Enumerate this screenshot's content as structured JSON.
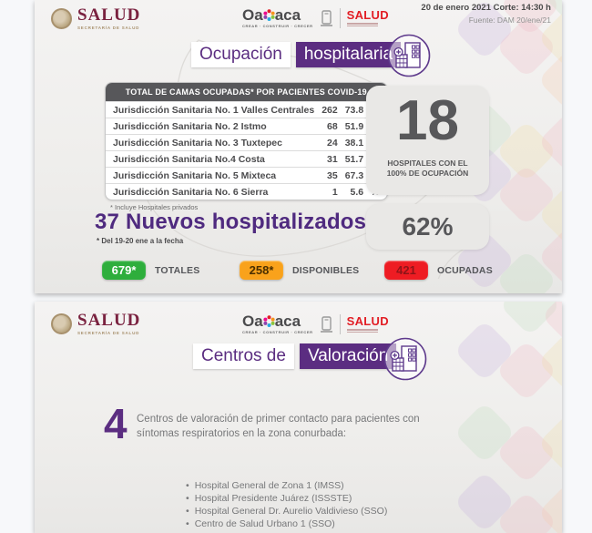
{
  "branding": {
    "salud_federal": "SALUD",
    "salud_federal_sub": "SECRETARÍA DE SALUD",
    "oaxaca_word_left": "Oa",
    "oaxaca_word_right": "aca",
    "oaxaca_sub": "CREAR · CONSTRUIR · CRECER",
    "sso_salud": "SALUD"
  },
  "slide1": {
    "date_line": "20 de enero 2021 Corte: 14:30 h",
    "source_line": "Fuente: DAM 20/ene/21",
    "title": {
      "part1": "Ocupación",
      "part2": "hospitalaria"
    },
    "table": {
      "header": "TOTAL DE CAMAS OCUPADAS* POR PACIENTES COVID-19",
      "percent_sign": "%",
      "rows": [
        {
          "name": "Jurisdicción Sanitaria No. 1 Valles Centrales",
          "beds": "262",
          "pct": "73.8"
        },
        {
          "name": "Jurisdicción Sanitaria No. 2 Istmo",
          "beds": "68",
          "pct": "51.9"
        },
        {
          "name": "Jurisdicción Sanitaria No. 3 Tuxtepec",
          "beds": "24",
          "pct": "38.1"
        },
        {
          "name": "Jurisdicción Sanitaria No.4 Costa",
          "beds": "31",
          "pct": "51.7"
        },
        {
          "name": "Jurisdicción Sanitaria No. 5 Mixteca",
          "beds": "35",
          "pct": "67.3"
        },
        {
          "name": "Jurisdicción Sanitaria No. 6 Sierra",
          "beds": "1",
          "pct": "5.6"
        }
      ],
      "footnote": "* Incluye Hospitales privados"
    },
    "stat_hospitals": {
      "value": "18",
      "label_line1": "HOSPITALES CON EL",
      "label_line2": "100% DE OCUPACIÓN"
    },
    "new_hospitalized": {
      "text": "37 Nuevos hospitalizados",
      "footnote": "* Del 19-20 ene a la fecha"
    },
    "occupancy_pct": "62%",
    "badges": [
      {
        "value": "679*",
        "label": "TOTALES"
      },
      {
        "value": "258*",
        "label": "DISPONIBLES"
      },
      {
        "value": "421",
        "label": "OCUPADAS"
      }
    ]
  },
  "slide2": {
    "title": {
      "part1": "Centros de",
      "part2": "Valoración"
    },
    "count": "4",
    "description": "Centros de valoración de primer contacto para pacientes con síntomas respiratorios en la zona conurbada:",
    "hospitals": [
      "Hospital General de Zona 1 (IMSS)",
      "Hospital Presidente Juárez (ISSSTE)",
      "Hospital General Dr. Aurelio Valdivieso (SSO)",
      "Centro de Salud Urbano 1 (SSO)"
    ]
  },
  "colors": {
    "accent_purple": "#5b2d81",
    "table_header_gray": "#57575a",
    "stat_gray": "#58585a",
    "badge_green": "#2eae3c",
    "badge_orange": "#f9a21b",
    "badge_red": "#ee1c23",
    "salud_maroon": "#7a2240",
    "sso_red": "#e21d24"
  }
}
